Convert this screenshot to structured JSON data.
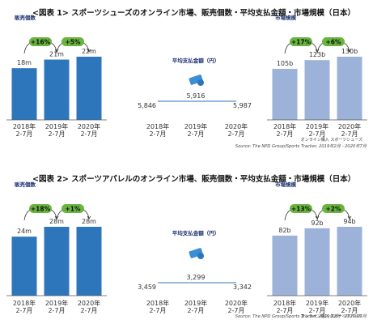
{
  "colors": {
    "dark_blue": "#2E76BC",
    "light_blue": "#9DB2D8",
    "green_badge": "#69B53F",
    "avg_line": "#2E76BC"
  },
  "figures": [
    {
      "title": "<図表 1> スポーツシューズのオンライン市場、販売個数・平均支払金額・市場規模（日本）",
      "source": "Source: The NPD Group/Sports Tracker, 2019年2月 - 2020年7月",
      "left_label": "販売個数",
      "center_label": "平均支払金額（円）",
      "right_label": "市場規模",
      "left_badges": [
        "+16%",
        "+5%"
      ],
      "right_badges": [
        "+17%",
        "+6%"
      ],
      "right_axis_note": "オンライン購入  スポーツシューズ"
    },
    {
      "title": "<図表 2> スポーツアパレルのオンライン市場、販売個数・平均支払金額・市場規模（日本）",
      "source": "Source: The NPD Group/Sports Tracker, 2019年2月 - 2020年7月",
      "left_label": "販売個数",
      "center_label": "平均支払金額（円）",
      "right_label": "市場規模",
      "left_badges": [
        "+18%",
        "+1%"
      ],
      "right_badges": [
        "+13%",
        "+2%"
      ],
      "right_axis_note": "オンライン購入  スポーツアパレル"
    }
  ],
  "chart_data": [
    {
      "type": "bar",
      "title": "販売個数",
      "categories": [
        "2018年 2-7月",
        "2019年 2-7月",
        "2020年 2-7月"
      ],
      "values": [
        18,
        21,
        22
      ],
      "data_labels": [
        "18m",
        "21m",
        "22m"
      ],
      "ylim": [
        0,
        22
      ]
    },
    {
      "type": "line",
      "title": "平均支払金額（円）",
      "categories": [
        "2018年 2-7月",
        "2019年 2-7月",
        "2020年 2-7月"
      ],
      "values": [
        5846,
        5916,
        5987
      ],
      "data_labels": [
        "5,846",
        "5,916",
        "5,987"
      ]
    },
    {
      "type": "bar",
      "title": "市場規模",
      "categories": [
        "2018年 2-7月",
        "2019年 2-7月",
        "2020年 2-7月"
      ],
      "values": [
        105,
        123,
        130
      ],
      "data_labels": [
        "105b",
        "123b",
        "130b"
      ],
      "ylim": [
        0,
        130
      ]
    },
    {
      "type": "bar",
      "title": "販売個数",
      "categories": [
        "2018年 2-7月",
        "2019年 2-7月",
        "2020年 2-7月"
      ],
      "values": [
        24,
        28,
        28
      ],
      "data_labels": [
        "24m",
        "28m",
        "28m"
      ],
      "ylim": [
        0,
        28
      ]
    },
    {
      "type": "line",
      "title": "平均支払金額（円）",
      "categories": [
        "2018年 2-7月",
        "2019年 2-7月",
        "2020年 2-7月"
      ],
      "values": [
        3459,
        3299,
        3342
      ],
      "data_labels": [
        "3,459",
        "3,299",
        "3,342"
      ]
    },
    {
      "type": "bar",
      "title": "市場規模",
      "categories": [
        "2018年 2-7月",
        "2019年 2-7月",
        "2020年 2-7月"
      ],
      "values": [
        82,
        92,
        94
      ],
      "data_labels": [
        "82b",
        "92b",
        "94b"
      ],
      "ylim": [
        0,
        94
      ]
    }
  ]
}
